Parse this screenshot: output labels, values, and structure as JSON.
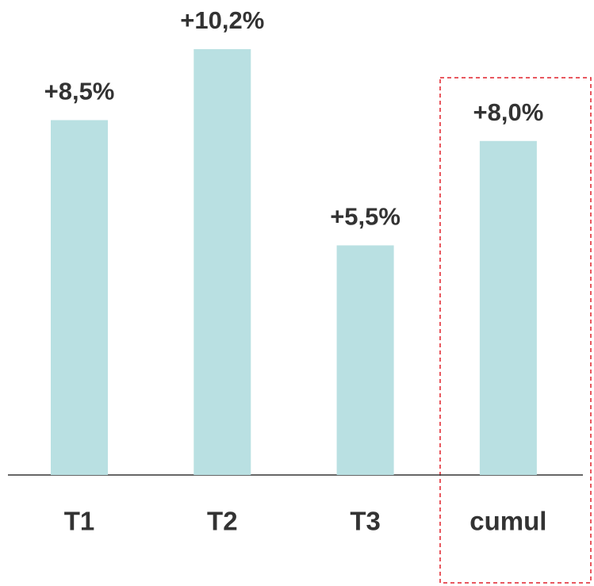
{
  "chart_data": {
    "type": "bar",
    "categories": [
      "T1",
      "T2",
      "T3",
      "cumul"
    ],
    "values": [
      8.5,
      10.2,
      5.5,
      8.0
    ],
    "value_labels": [
      "+8,5%",
      "+10,2%",
      "+5,5%",
      "+8,0%"
    ],
    "color": "#b9e0e2"
  }
}
